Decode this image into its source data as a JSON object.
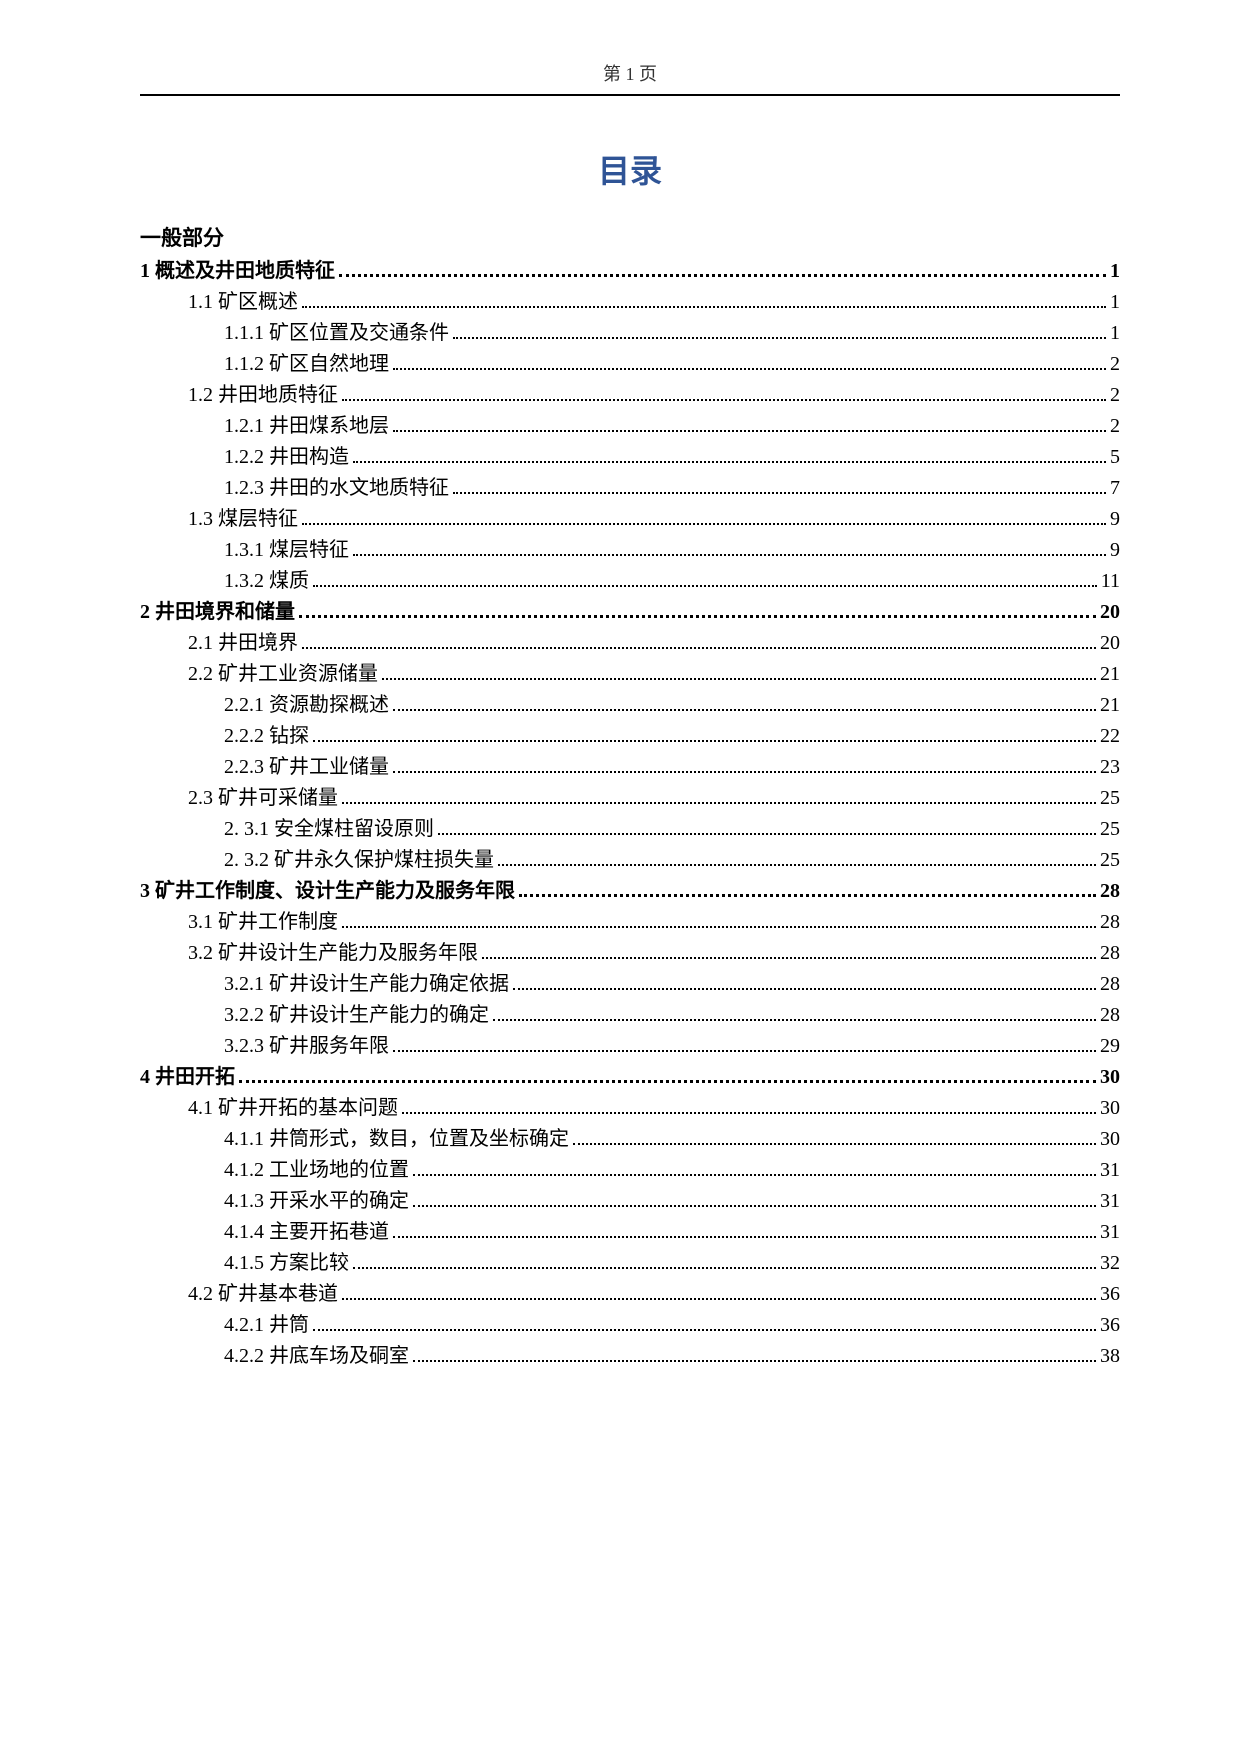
{
  "pageHeader": "第 1 页",
  "title": "目录",
  "sectionLabel": "一般部分",
  "colors": {
    "title_color": "#2f5496",
    "text_color": "#000000",
    "background": "#ffffff",
    "rule_color": "#000000"
  },
  "typography": {
    "title_fontsize": 32,
    "body_fontsize": 20,
    "section_fontsize": 21,
    "header_fontsize": 18
  },
  "entries": [
    {
      "level": 0,
      "num": "1",
      "text": "概述及井田地质特征",
      "page": "1"
    },
    {
      "level": 1,
      "num": "1.1",
      "text": "矿区概述",
      "page": "1"
    },
    {
      "level": 2,
      "num": "1.1.1",
      "text": "矿区位置及交通条件",
      "page": "1"
    },
    {
      "level": 2,
      "num": "1.1.2",
      "text": "矿区自然地理",
      "page": "2"
    },
    {
      "level": 1,
      "num": "1.2",
      "text": "井田地质特征",
      "page": "2"
    },
    {
      "level": 2,
      "num": "1.2.1",
      "text": "井田煤系地层",
      "page": "2"
    },
    {
      "level": 2,
      "num": "1.2.2",
      "text": "井田构造",
      "page": "5"
    },
    {
      "level": 2,
      "num": "1.2.3",
      "text": "井田的水文地质特征",
      "page": "7"
    },
    {
      "level": 1,
      "num": "1.3",
      "text": "煤层特征",
      "page": "9"
    },
    {
      "level": 2,
      "num": "1.3.1",
      "text": "煤层特征",
      "page": "9"
    },
    {
      "level": 2,
      "num": "1.3.2",
      "text": "煤质",
      "page": "11"
    },
    {
      "level": 0,
      "num": "2",
      "text": "井田境界和储量",
      "page": "20"
    },
    {
      "level": 1,
      "num": "2.1",
      "text": "井田境界",
      "page": "20"
    },
    {
      "level": 1,
      "num": "2.2",
      "text": "矿井工业资源储量",
      "page": "21"
    },
    {
      "level": 2,
      "num": "2.2.1",
      "text": "资源勘探概述",
      "page": "21"
    },
    {
      "level": 2,
      "num": "2.2.2",
      "text": "钻探",
      "page": "22"
    },
    {
      "level": 2,
      "num": "2.2.3",
      "text": "矿井工业储量",
      "page": "23"
    },
    {
      "level": 1,
      "num": "2.3",
      "text": "矿井可采储量",
      "page": "25"
    },
    {
      "level": 2,
      "num": "2. 3.1",
      "text": "安全煤柱留设原则",
      "page": "25"
    },
    {
      "level": 2,
      "num": "2. 3.2",
      "text": "矿井永久保护煤柱损失量",
      "page": "25"
    },
    {
      "level": 0,
      "num": "3",
      "text": "矿井工作制度、设计生产能力及服务年限",
      "page": "28"
    },
    {
      "level": 1,
      "num": "3.1",
      "text": "矿井工作制度",
      "page": "28"
    },
    {
      "level": 1,
      "num": "3.2",
      "text": "矿井设计生产能力及服务年限",
      "page": "28"
    },
    {
      "level": 2,
      "num": "3.2.1",
      "text": "矿井设计生产能力确定依据",
      "page": "28"
    },
    {
      "level": 2,
      "num": "3.2.2",
      "text": "矿井设计生产能力的确定",
      "page": "28"
    },
    {
      "level": 2,
      "num": "3.2.3",
      "text": "矿井服务年限",
      "page": "29"
    },
    {
      "level": 0,
      "num": "4",
      "text": "井田开拓",
      "page": "30"
    },
    {
      "level": 1,
      "num": "4.1",
      "text": "矿井开拓的基本问题",
      "page": "30"
    },
    {
      "level": 2,
      "num": "4.1.1",
      "text": "井筒形式，数目，位置及坐标确定",
      "page": "30"
    },
    {
      "level": 2,
      "num": "4.1.2",
      "text": "工业场地的位置",
      "page": "31"
    },
    {
      "level": 2,
      "num": "4.1.3",
      "text": "开采水平的确定",
      "page": "31"
    },
    {
      "level": 2,
      "num": "4.1.4",
      "text": "主要开拓巷道",
      "page": "31"
    },
    {
      "level": 2,
      "num": "4.1.5",
      "text": "方案比较",
      "page": "32"
    },
    {
      "level": 1,
      "num": "4.2",
      "text": "矿井基本巷道",
      "page": "36"
    },
    {
      "level": 2,
      "num": "4.2.1",
      "text": "井筒",
      "page": "36"
    },
    {
      "level": 2,
      "num": "4.2.2",
      "text": "井底车场及硐室",
      "page": "38"
    }
  ]
}
